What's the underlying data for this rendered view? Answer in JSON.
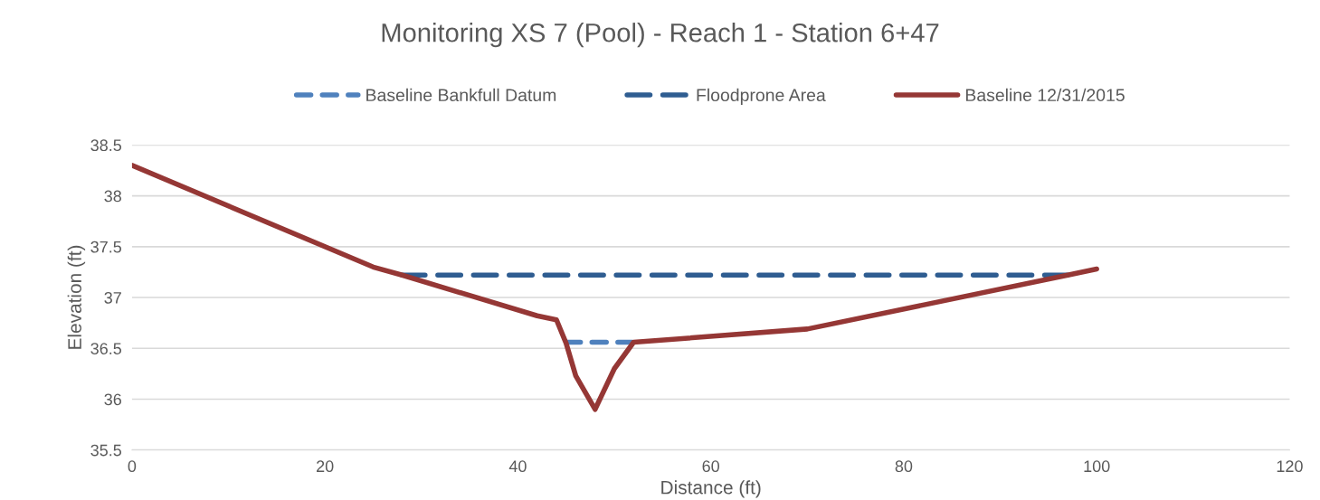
{
  "chart_data": {
    "type": "line",
    "title": "Monitoring XS 7 (Pool) - Reach 1 - Station 6+47",
    "xlabel": "Distance (ft)",
    "ylabel": "Elevation (ft)",
    "xlim": [
      0,
      120
    ],
    "xticks": [
      0,
      20,
      40,
      60,
      80,
      100,
      120
    ],
    "ylim": [
      35.5,
      38.5
    ],
    "yticks": [
      35.5,
      36,
      36.5,
      37,
      37.5,
      38,
      38.5
    ],
    "grid": "y",
    "legend": "top",
    "marker": "none",
    "series": [
      {
        "name": "Baseline Bankfull Datum",
        "color": "#4f81bd",
        "line_style": "dashed",
        "x": [
          45,
          52
        ],
        "values": [
          36.56,
          36.56
        ]
      },
      {
        "name": "Floodprone Area",
        "color": "#2f5d91",
        "line_style": "dashed",
        "x": [
          28,
          97
        ],
        "values": [
          37.22,
          37.22
        ]
      },
      {
        "name": "Baseline 12/31/2015",
        "color": "#953735",
        "line_style": "solid",
        "x": [
          0,
          25,
          28,
          42,
          44,
          45,
          46,
          48,
          50,
          52,
          70,
          97,
          100
        ],
        "values": [
          38.3,
          37.3,
          37.22,
          36.82,
          36.78,
          36.55,
          36.23,
          35.9,
          36.3,
          36.56,
          36.69,
          37.22,
          37.28
        ]
      }
    ]
  }
}
